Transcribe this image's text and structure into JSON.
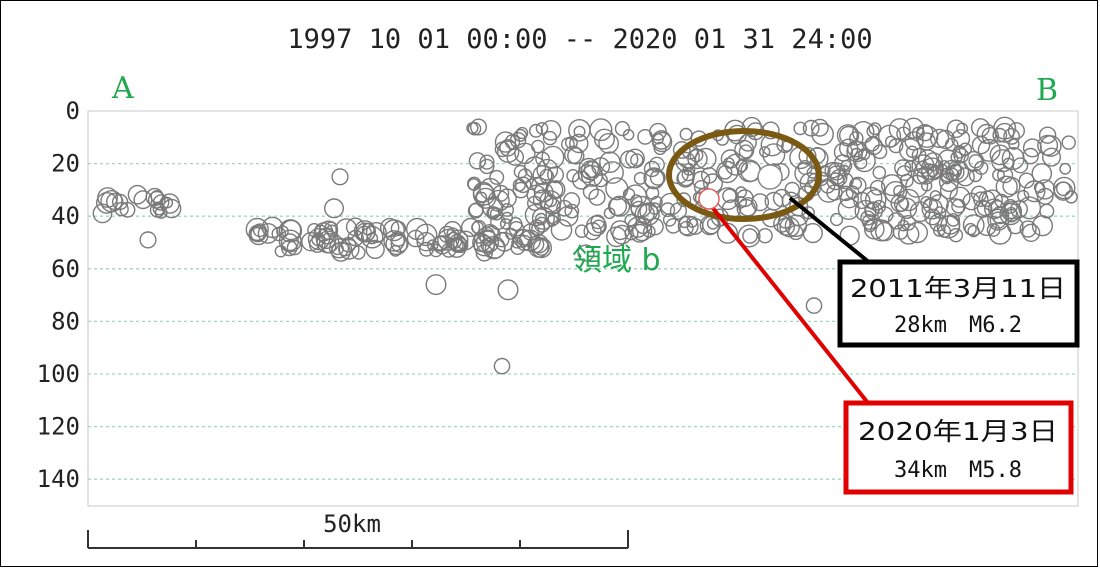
{
  "title": "1997 10 01 00:00 -- 2020 01 31 24:00",
  "section_labels": {
    "start": "A",
    "end": "B"
  },
  "region_label": "領域 b",
  "scale_bar": {
    "label": "50km",
    "length_km": 50
  },
  "colors": {
    "event_stroke": "#7a7a7a",
    "event_fill_dense": "#9a9a9a",
    "gridline": "#9fd7c7",
    "label_green": "#1fa84f",
    "ellipse": "#7a5a12",
    "callout_2011": "#000000",
    "callout_2020": "#e00000"
  },
  "callouts": [
    {
      "id": "2011",
      "date": "2011年3月11日",
      "detail": "28km　M6.2",
      "depth_km": 28,
      "magnitude": 6.2,
      "border_color": "#000000"
    },
    {
      "id": "2020",
      "date": "2020年1月3日",
      "detail": "34km　M5.8",
      "depth_km": 34,
      "magnitude": 5.8,
      "border_color": "#e00000"
    }
  ],
  "chart_data": {
    "type": "scatter",
    "title": "1997 10 01 00:00 -- 2020 01 31 24:00",
    "xlabel": "",
    "ylabel": "",
    "x_range_km": [
      0,
      165
    ],
    "ylim": [
      0,
      150
    ],
    "y_inverted": true,
    "yticks": [
      0,
      20,
      40,
      60,
      80,
      100,
      120,
      140
    ],
    "grid": true,
    "clusters": [
      {
        "name": "",
        "x_km": [
          0,
          14
        ],
        "depth_km": [
          31,
          40
        ],
        "count": 20
      },
      {
        "name": "",
        "x_km": [
          28,
          76
        ],
        "depth_km": [
          44,
          54
        ],
        "count": 110
      },
      {
        "name": "",
        "x_km": [
          64,
          160
        ],
        "depth_km": [
          6,
          48
        ],
        "count": 420
      },
      {
        "name": "",
        "x_km": [
          125,
          165
        ],
        "depth_km": [
          8,
          48
        ],
        "count": 45
      }
    ],
    "isolated_points": [
      {
        "x_km": 10,
        "depth_km": 49
      },
      {
        "x_km": 42,
        "depth_km": 25
      },
      {
        "x_km": 41,
        "depth_km": 37
      },
      {
        "x_km": 58,
        "depth_km": 66
      },
      {
        "x_km": 70,
        "depth_km": 68
      },
      {
        "x_km": 69,
        "depth_km": 97
      },
      {
        "x_km": 83,
        "depth_km": 54
      },
      {
        "x_km": 89,
        "depth_km": 47
      },
      {
        "x_km": 121,
        "depth_km": 74
      },
      {
        "x_km": 70,
        "depth_km": 14
      },
      {
        "x_km": 80,
        "depth_km": 40
      }
    ],
    "highlighted_events": [
      {
        "label": "2011年3月11日",
        "x_km": 138,
        "depth_km": 28,
        "magnitude": 6.2
      },
      {
        "label": "2020年1月3日",
        "x_km": 142,
        "depth_km": 34,
        "magnitude": 5.8
      }
    ]
  }
}
